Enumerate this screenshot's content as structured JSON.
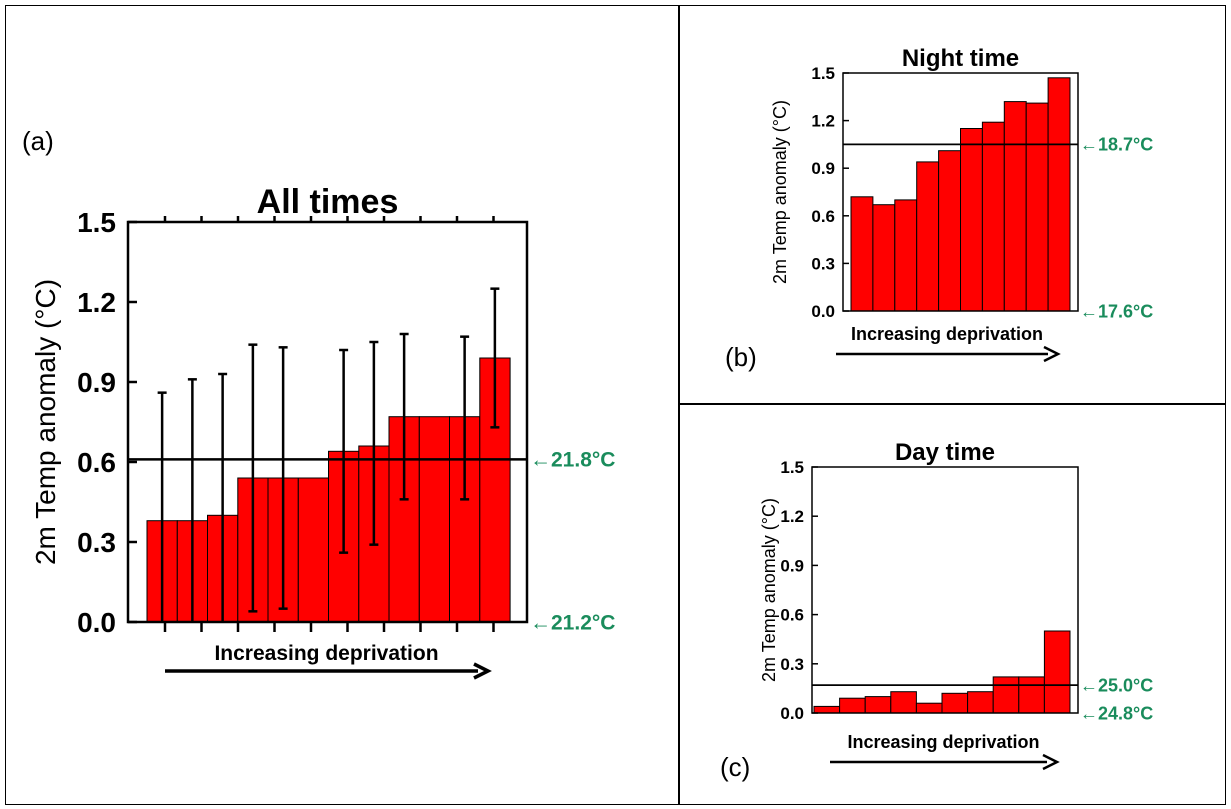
{
  "panels": [
    {
      "label": "(a)"
    },
    {
      "label": "(b)"
    },
    {
      "label": "(c)"
    }
  ],
  "colors": {
    "bar_fill": "#ff0000",
    "bar_stroke": "#000000",
    "reference_label": "#1a8c5c",
    "axis": "#000000"
  },
  "chart_data": [
    {
      "type": "bar",
      "title": "All times",
      "xlabel": "Increasing deprivation",
      "ylabel": "2m Temp anomaly (°C)",
      "ylim": [
        0,
        1.5
      ],
      "yticks": [
        "0.0",
        "0.3",
        "0.6",
        "0.9",
        "1.2",
        "1.5"
      ],
      "x": [
        1,
        2,
        3,
        4,
        5,
        6,
        7,
        8,
        9,
        10,
        11,
        12
      ],
      "values": [
        0.38,
        0.38,
        0.4,
        0.54,
        0.54,
        0.54,
        0.64,
        0.66,
        0.77,
        0.77,
        0.77,
        0.99
      ],
      "error_low": [
        0.0,
        0.0,
        0.0,
        0.04,
        0.05,
        0.0,
        0.26,
        0.29,
        0.46,
        0.0,
        0.46,
        0.73
      ],
      "error_high": [
        0.86,
        0.91,
        0.93,
        1.04,
        1.03,
        0.0,
        1.02,
        1.05,
        1.08,
        0.0,
        1.07,
        1.25
      ],
      "reference_line": 0.61,
      "annotations": [
        {
          "text": "←21.8°C",
          "y": 0.61
        },
        {
          "text": "←21.2°C",
          "y": 0.0
        }
      ],
      "grid": false
    },
    {
      "type": "bar",
      "title": "Night time",
      "xlabel": "Increasing deprivation",
      "ylabel": "2m Temp anomaly (°C)",
      "ylim": [
        0,
        1.5
      ],
      "yticks": [
        "0.0",
        "0.3",
        "0.6",
        "0.9",
        "1.2",
        "1.5"
      ],
      "x": [
        1,
        2,
        3,
        4,
        5,
        6,
        7,
        8,
        9,
        10
      ],
      "values": [
        0.72,
        0.67,
        0.7,
        0.94,
        1.01,
        1.15,
        1.19,
        1.32,
        1.31,
        1.47
      ],
      "reference_line": 1.05,
      "annotations": [
        {
          "text": "←18.7°C",
          "y": 1.05
        },
        {
          "text": "←17.6°C",
          "y": 0.0
        }
      ],
      "grid": false
    },
    {
      "type": "bar",
      "title": "Day time",
      "xlabel": "Increasing deprivation",
      "ylabel": "2m Temp anomaly (°C)",
      "ylim": [
        0,
        1.5
      ],
      "yticks": [
        "0.0",
        "0.3",
        "0.6",
        "0.9",
        "1.2",
        "1.5"
      ],
      "x": [
        1,
        2,
        3,
        4,
        5,
        6,
        7,
        8,
        9,
        10
      ],
      "values": [
        0.04,
        0.09,
        0.1,
        0.13,
        0.06,
        0.12,
        0.13,
        0.22,
        0.22,
        0.5
      ],
      "reference_line": 0.17,
      "annotations": [
        {
          "text": "←25.0°C",
          "y": 0.17
        },
        {
          "text": "←24.8°C",
          "y": 0.0
        }
      ],
      "grid": false
    }
  ]
}
